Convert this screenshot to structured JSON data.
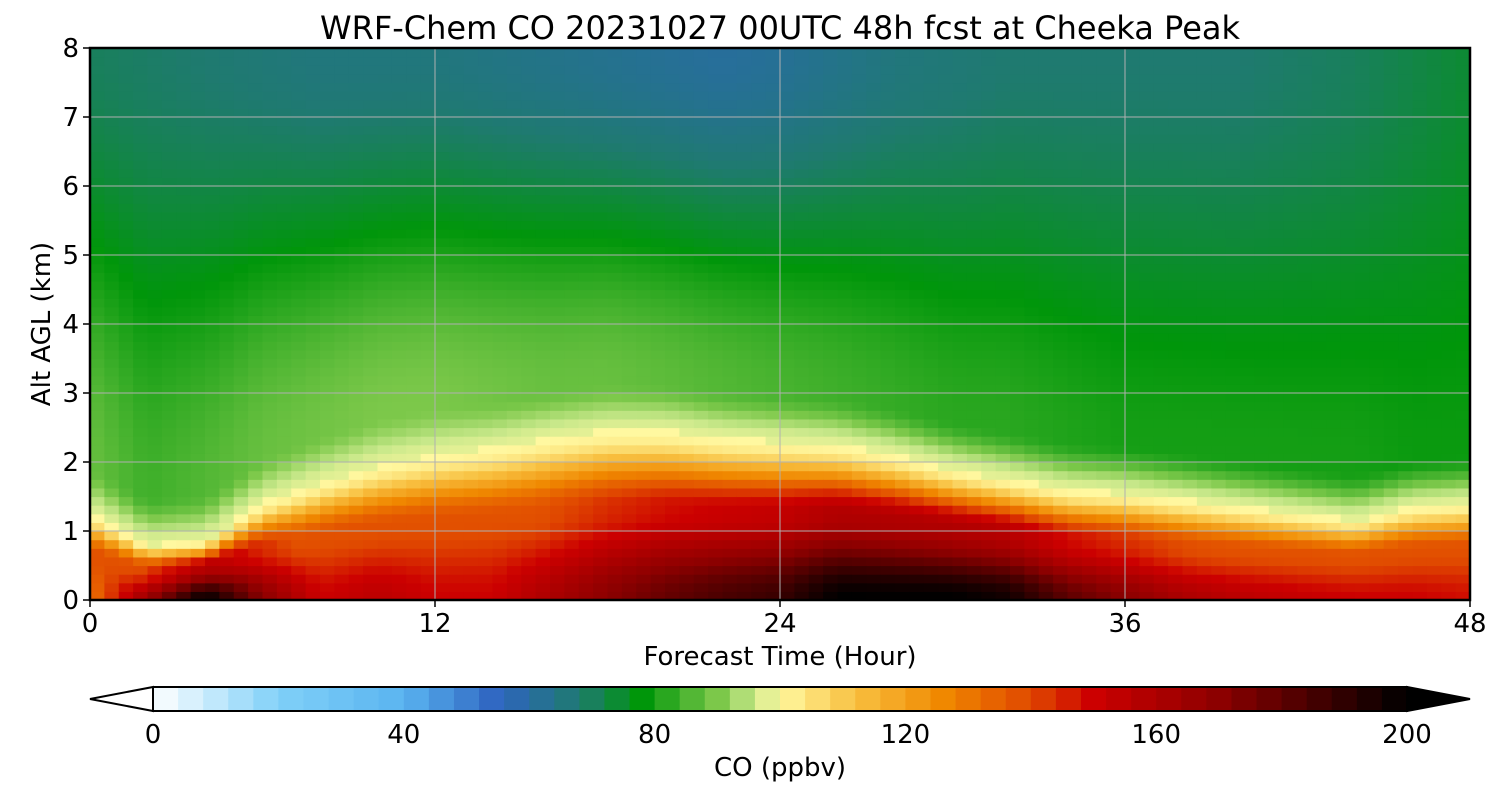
{
  "chart_data": {
    "type": "heatmap",
    "title": "WRF-Chem CO  20231027 00UTC 48h fcst at Cheeka Peak",
    "xlabel": "Forecast Time (Hour)",
    "ylabel": "Alt AGL (km)",
    "xlim": [
      0,
      48
    ],
    "ylim": [
      0,
      8
    ],
    "xticks": [
      "0",
      "12",
      "24",
      "36",
      "48"
    ],
    "yticks": [
      "0",
      "1",
      "2",
      "3",
      "4",
      "5",
      "6",
      "7",
      "8"
    ],
    "grid": true,
    "colorbar": {
      "label": "CO  (ppbv)",
      "range": [
        0,
        200
      ],
      "ticks": [
        "0",
        "40",
        "80",
        "120",
        "160",
        "200"
      ],
      "extend": "both",
      "colormap": [
        {
          "value": 0,
          "color": "#ffffff"
        },
        {
          "value": 20,
          "color": "#80d0f8"
        },
        {
          "value": 40,
          "color": "#5ab4f0"
        },
        {
          "value": 55,
          "color": "#2e64c0"
        },
        {
          "value": 68,
          "color": "#1f7a70"
        },
        {
          "value": 78,
          "color": "#00960a"
        },
        {
          "value": 90,
          "color": "#7cc84a"
        },
        {
          "value": 96,
          "color": "#c8e88a"
        },
        {
          "value": 100,
          "color": "#fff8a0"
        },
        {
          "value": 112,
          "color": "#f8c040"
        },
        {
          "value": 126,
          "color": "#f08800"
        },
        {
          "value": 140,
          "color": "#e04800"
        },
        {
          "value": 150,
          "color": "#cc0000"
        },
        {
          "value": 170,
          "color": "#8c0000"
        },
        {
          "value": 200,
          "color": "#000000"
        }
      ]
    },
    "field": {
      "description_units": "ppbv",
      "times": [
        0,
        2,
        4,
        6,
        8,
        10,
        12,
        14,
        16,
        18,
        20,
        22,
        24,
        26,
        28,
        30,
        32,
        34,
        36,
        38,
        40,
        42,
        44,
        46,
        48
      ],
      "altitudes": [
        0,
        0.25,
        0.5,
        0.75,
        1.0,
        1.25,
        1.5,
        1.75,
        2.0,
        2.25,
        2.5,
        2.75,
        3.0,
        3.5,
        4.0,
        4.5,
        5.0,
        5.5,
        6.0,
        6.5,
        7.0,
        7.5,
        8.0
      ],
      "pbl_top_km": [
        1.25,
        0.8,
        0.85,
        1.4,
        1.7,
        1.95,
        2.1,
        2.2,
        2.35,
        2.45,
        2.45,
        2.35,
        2.3,
        2.25,
        2.1,
        1.9,
        1.75,
        1.6,
        1.55,
        1.45,
        1.35,
        1.25,
        1.15,
        1.35,
        1.4
      ],
      "surface_ppbv": [
        130,
        165,
        200,
        170,
        150,
        155,
        150,
        150,
        160,
        170,
        178,
        184,
        188,
        200,
        200,
        200,
        196,
        180,
        170,
        160,
        155,
        152,
        150,
        150,
        148
      ],
      "free_trop_low_ppbv": [
        88,
        84,
        86,
        88,
        89,
        90,
        90,
        89,
        88,
        88,
        87,
        86,
        85,
        84,
        83,
        82,
        82,
        81,
        80,
        80,
        80,
        80,
        80,
        79,
        79
      ],
      "top_ppbv": [
        70,
        69,
        68,
        67,
        66,
        66,
        66,
        65,
        64,
        63,
        62,
        61,
        62,
        64,
        66,
        67,
        68,
        68,
        68,
        68,
        68,
        69,
        70,
        72,
        74
      ]
    }
  }
}
